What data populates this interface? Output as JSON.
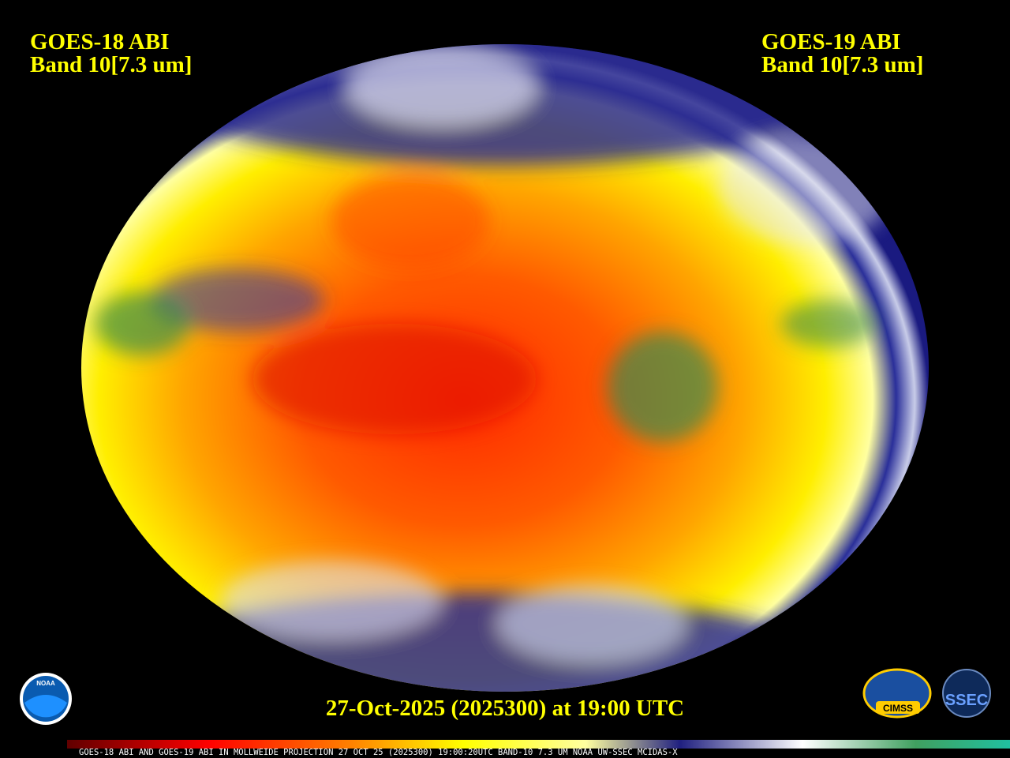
{
  "labels": {
    "left": {
      "satellite": "GOES-18 ABI",
      "band": "Band 10[7.3 um]"
    },
    "right": {
      "satellite": "GOES-19 ABI",
      "band": "Band 10[7.3 um]"
    }
  },
  "timestamp": "27-Oct-2025 (2025300) at 19:00 UTC",
  "footer": "GOES-18 ABI AND GOES-19 ABI IN MOLLWEIDE PROJECTION 27 OCT 25 (2025300) 19:00:20UTC BAND-10 7.3 UM NOAA UW-SSEC MCIDAS-X",
  "logos": {
    "noaa": "NOAA",
    "cimss": "CIMSS",
    "ssec": "SSEC"
  }
}
